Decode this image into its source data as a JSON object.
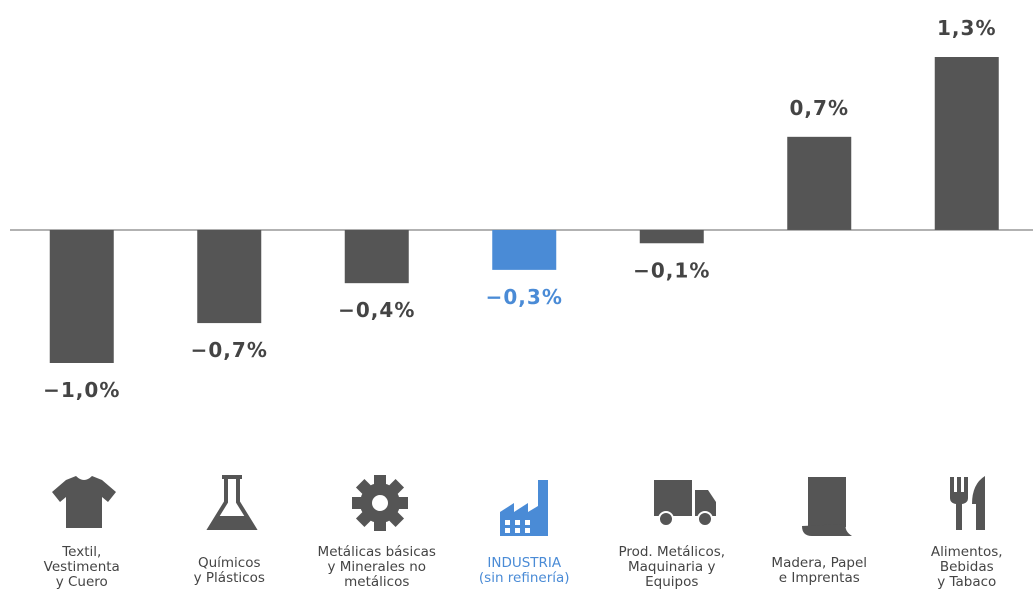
{
  "chart_data": {
    "type": "bar",
    "categories": [
      "Textil,\nVestimenta\ny Cuero",
      "Químicos\ny Plásticos",
      "Metálicas básicas\ny Minerales no\nmetálicos",
      "INDUSTRIA\n(sin refinería)",
      "Prod. Metálicos,\nMaquinaria y\nEquipos",
      "Madera, Papel\ne Imprentas",
      "Alimentos,\nBebidas\ny Tabaco"
    ],
    "values": [
      -1.0,
      -0.7,
      -0.4,
      -0.3,
      -0.1,
      0.7,
      1.3
    ],
    "value_labels": [
      "−1,0%",
      "−0,7%",
      "−0,4%",
      "−0,3%",
      "−0,1%",
      "0,7%",
      "1,3%"
    ],
    "colors": [
      "#555555",
      "#555555",
      "#555555",
      "#4a8bd6",
      "#555555",
      "#555555",
      "#555555"
    ],
    "ylim": [
      -1.0,
      1.3
    ]
  }
}
